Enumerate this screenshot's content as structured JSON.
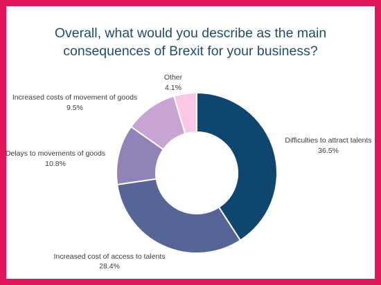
{
  "chart_data": {
    "type": "pie",
    "donut": true,
    "title": "Overall, what would you describe as the main consequences of Brexit for your business?",
    "title_lines": [
      "Overall, what would you describe as the main",
      "consequences of Brexit for your business?"
    ],
    "categories": [
      "Difficulties to attract talents",
      "Increased cost of access to talents",
      "Delays to movements of goods",
      "Increased costs of movement of goods",
      "Other"
    ],
    "values": [
      36.5,
      28.4,
      10.8,
      9.5,
      4.1
    ],
    "value_labels": [
      "36.5%",
      "28.4%",
      "10.8%",
      "9.5%",
      "4.1%"
    ],
    "colors": [
      "#0f4670",
      "#566596",
      "#9183b7",
      "#c7a4d3",
      "#fbc7e6"
    ],
    "legend": "none",
    "border_color": "#e0185a",
    "title_color": "#1e4d6b"
  }
}
